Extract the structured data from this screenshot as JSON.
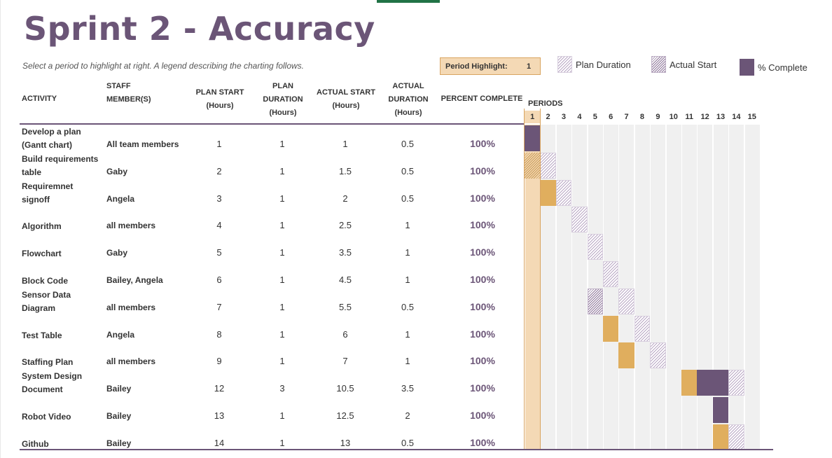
{
  "title": "Sprint 2 - Accuracy",
  "subtitle": "Select a period to highlight at right.  A legend describing the charting follows.",
  "period_highlight": {
    "label": "Period Highlight:",
    "value": "1"
  },
  "legend": {
    "plan_duration": "Plan Duration",
    "actual_start": "Actual Start",
    "percent_complete": "% Complete"
  },
  "headers": {
    "activity": "ACTIVITY",
    "staff_1": "STAFF",
    "staff_2": "MEMBER(S)",
    "plan_start_1": "PLAN START",
    "plan_start_2": "(Hours)",
    "plan_duration_1": "PLAN",
    "plan_duration_2": "DURATION",
    "plan_duration_3": "(Hours)",
    "actual_start_1": "ACTUAL START",
    "actual_start_2": "(Hours)",
    "actual_duration_1": "ACTUAL",
    "actual_duration_2": "DURATION",
    "actual_duration_3": "(Hours)",
    "percent_complete": "PERCENT COMPLETE",
    "periods": "PERIODS"
  },
  "periods": [
    "1",
    "2",
    "3",
    "4",
    "5",
    "6",
    "7",
    "8",
    "9",
    "10",
    "11",
    "12",
    "13",
    "14",
    "15"
  ],
  "colors": {
    "accent": "#6b5577",
    "highlight": "#f4d9b5",
    "actual": "#e0ae5e"
  },
  "rows": [
    {
      "activity_1": "Develop a plan",
      "activity_2": "(Gantt chart)",
      "staff": "All team members",
      "plan_start": "1",
      "plan_duration": "1",
      "actual_start": "1",
      "actual_duration": "0.5",
      "percent": "100%"
    },
    {
      "activity_1": "Build requirements",
      "activity_2": "table",
      "staff": "Gaby",
      "plan_start": "2",
      "plan_duration": "1",
      "actual_start": "1.5",
      "actual_duration": "0.5",
      "percent": "100%"
    },
    {
      "activity_1": "Requiremnet",
      "activity_2": "signoff",
      "staff": "Angela",
      "plan_start": "3",
      "plan_duration": "1",
      "actual_start": "2",
      "actual_duration": "0.5",
      "percent": "100%"
    },
    {
      "activity_1": "",
      "activity_2": "Algorithm",
      "staff": "all members",
      "plan_start": "4",
      "plan_duration": "1",
      "actual_start": "2.5",
      "actual_duration": "1",
      "percent": "100%"
    },
    {
      "activity_1": "",
      "activity_2": "Flowchart",
      "staff": "Gaby",
      "plan_start": "5",
      "plan_duration": "1",
      "actual_start": "3.5",
      "actual_duration": "1",
      "percent": "100%"
    },
    {
      "activity_1": "",
      "activity_2": "Block Code",
      "staff": "Bailey, Angela",
      "plan_start": "6",
      "plan_duration": "1",
      "actual_start": "4.5",
      "actual_duration": "1",
      "percent": "100%"
    },
    {
      "activity_1": "Sensor Data",
      "activity_2": "Diagram",
      "staff": "all members",
      "plan_start": "7",
      "plan_duration": "1",
      "actual_start": "5.5",
      "actual_duration": "0.5",
      "percent": "100%"
    },
    {
      "activity_1": "",
      "activity_2": "Test Table",
      "staff": "Angela",
      "plan_start": "8",
      "plan_duration": "1",
      "actual_start": "6",
      "actual_duration": "1",
      "percent": "100%"
    },
    {
      "activity_1": "",
      "activity_2": "Staffing Plan",
      "staff": "all members",
      "plan_start": "9",
      "plan_duration": "1",
      "actual_start": "7",
      "actual_duration": "1",
      "percent": "100%"
    },
    {
      "activity_1": "System Design",
      "activity_2": "Document",
      "staff": "Bailey",
      "plan_start": "12",
      "plan_duration": "3",
      "actual_start": "10.5",
      "actual_duration": "3.5",
      "percent": "100%"
    },
    {
      "activity_1": "",
      "activity_2": "Robot Video",
      "staff": "Bailey",
      "plan_start": "13",
      "plan_duration": "1",
      "actual_start": "12.5",
      "actual_duration": "2",
      "percent": "100%"
    },
    {
      "activity_1": "",
      "activity_2": "Github",
      "staff": "Bailey",
      "plan_start": "14",
      "plan_duration": "1",
      "actual_start": "13",
      "actual_duration": "0.5",
      "percent": "100%"
    }
  ],
  "gantt": [
    {
      "cells": [
        {
          "p": 1,
          "t": "complete"
        }
      ]
    },
    {
      "cells": [
        {
          "p": 1,
          "t": "actual-hatch-orange"
        },
        {
          "p": 2,
          "t": "plan"
        }
      ]
    },
    {
      "cells": [
        {
          "p": 2,
          "t": "actual"
        },
        {
          "p": 3,
          "t": "plan"
        }
      ]
    },
    {
      "cells": [
        {
          "p": 4,
          "t": "plan"
        }
      ]
    },
    {
      "cells": [
        {
          "p": 5,
          "t": "plan"
        }
      ]
    },
    {
      "cells": [
        {
          "p": 6,
          "t": "plan"
        }
      ]
    },
    {
      "cells": [
        {
          "p": 5,
          "t": "actual-hatch"
        },
        {
          "p": 7,
          "t": "plan"
        }
      ]
    },
    {
      "cells": [
        {
          "p": 6,
          "t": "actual"
        },
        {
          "p": 8,
          "t": "plan"
        }
      ]
    },
    {
      "cells": [
        {
          "p": 7,
          "t": "actual"
        },
        {
          "p": 9,
          "t": "plan"
        }
      ]
    },
    {
      "cells": [
        {
          "p": 11,
          "t": "actual"
        },
        {
          "p": 12,
          "t": "complete"
        },
        {
          "p": 13,
          "t": "complete"
        },
        {
          "p": 14,
          "t": "plan"
        }
      ]
    },
    {
      "cells": [
        {
          "p": 13,
          "t": "complete"
        }
      ]
    },
    {
      "cells": [
        {
          "p": 13,
          "t": "actual"
        },
        {
          "p": 14,
          "t": "plan"
        }
      ]
    }
  ]
}
